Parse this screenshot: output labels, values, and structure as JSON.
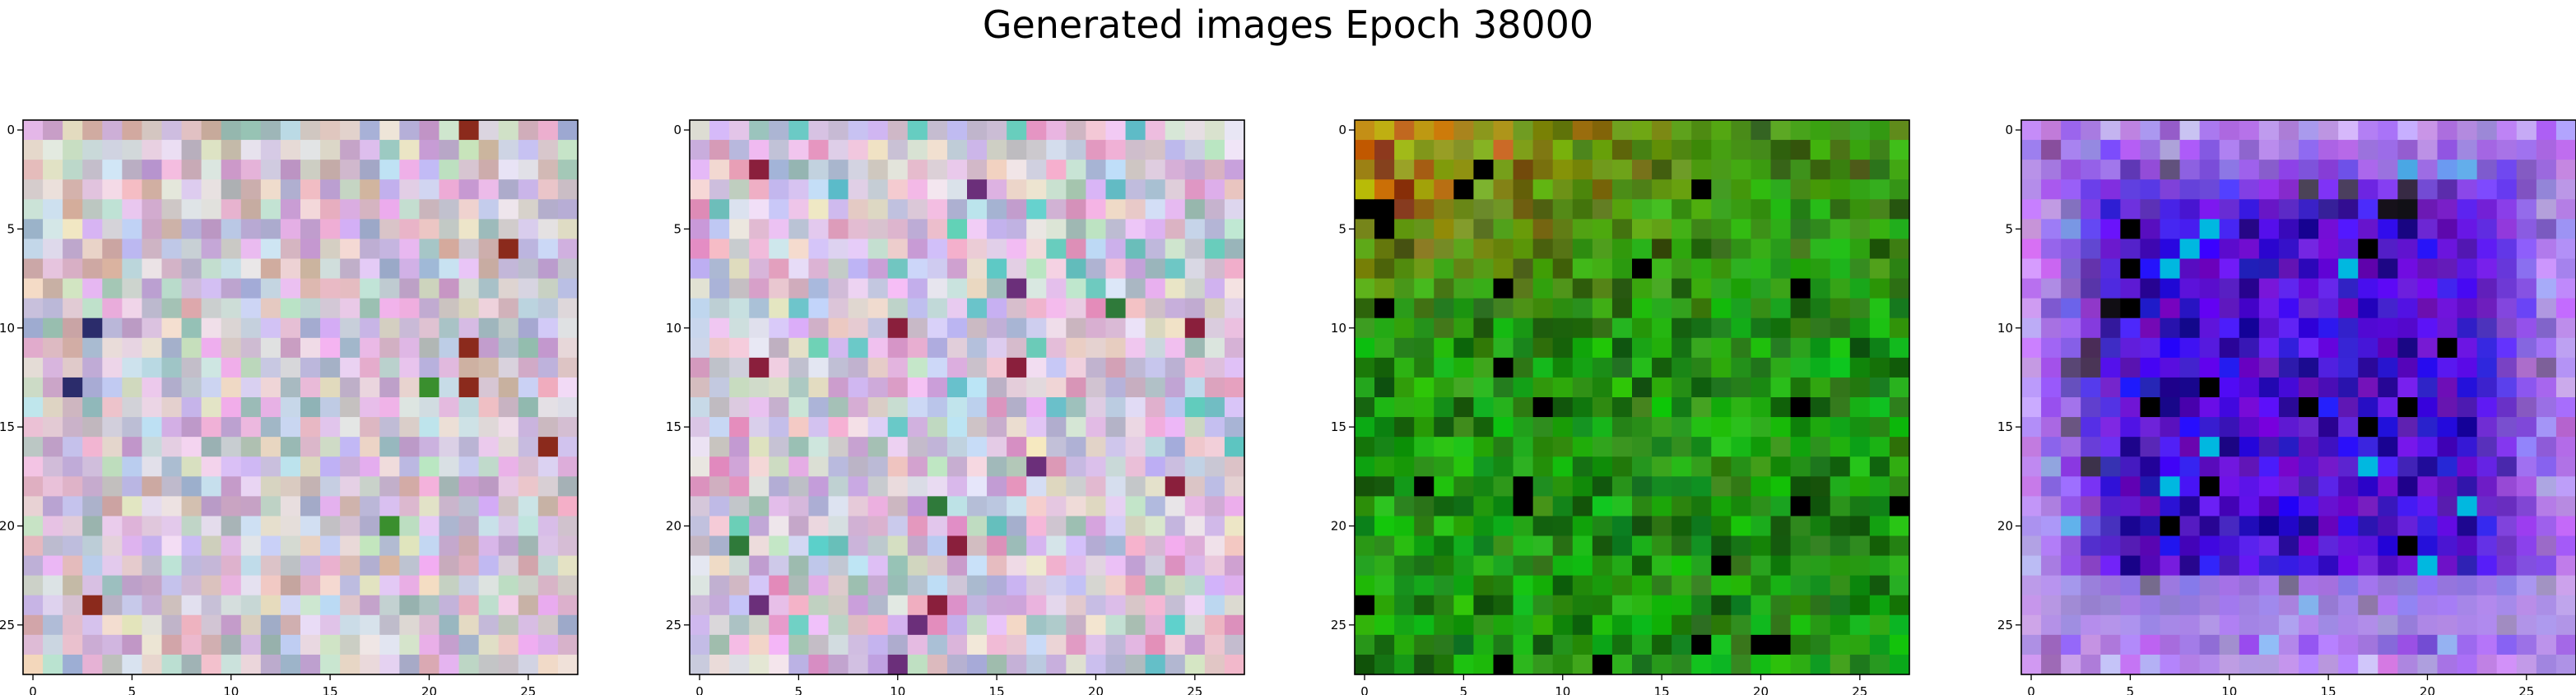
{
  "figure": {
    "title": "Generated images Epoch 38000"
  },
  "chart_data": [
    {
      "type": "heatmap",
      "name": "generated-image-1",
      "palette": "light-pastel-noise",
      "grid": false,
      "xlim": [
        -0.5,
        27.5
      ],
      "ylim": [
        27.5,
        -0.5
      ],
      "xticks": [
        "0",
        "5",
        "10",
        "15",
        "20",
        "25"
      ],
      "yticks": [
        "0",
        "5",
        "10",
        "15",
        "20",
        "25"
      ],
      "colors": {
        "base": "#d7c9d9",
        "accents": [
          "#7fb3a4",
          "#b68dc5",
          "#8fa5c9",
          "#c9a08e",
          "#f0f0e8",
          "#2b2c6b",
          "#8b2a1c",
          "#3a8f2e"
        ]
      }
    },
    {
      "type": "heatmap",
      "name": "generated-image-2",
      "palette": "light-pastel-noise",
      "grid": false,
      "xlim": [
        -0.5,
        27.5
      ],
      "ylim": [
        27.5,
        -0.5
      ],
      "xticks": [
        "0",
        "5",
        "10",
        "15",
        "20",
        "25"
      ],
      "yticks": [
        "0",
        "5",
        "10",
        "15",
        "20",
        "25"
      ],
      "colors": {
        "base": "#d8cbdc",
        "accents": [
          "#86b7a6",
          "#c08fcf",
          "#9ca9d0",
          "#e07bb0",
          "#1ac4b0",
          "#6b2f7a",
          "#8a1f3c",
          "#2f7a3a"
        ]
      }
    },
    {
      "type": "heatmap",
      "name": "generated-image-3",
      "palette": "green-foliage-with-orange-top",
      "grid": false,
      "xlim": [
        -0.5,
        27.5
      ],
      "ylim": [
        27.5,
        -0.5
      ],
      "xticks": [
        "0",
        "5",
        "10",
        "15",
        "20",
        "25"
      ],
      "yticks": [
        "0",
        "5",
        "10",
        "15",
        "20",
        "25"
      ],
      "colors": {
        "base": "#1f8f12",
        "accents": [
          "#b7a31e",
          "#c46f12",
          "#a12a0c",
          "#0c3f08",
          "#19b019",
          "#5a8f2a",
          "#000000"
        ]
      }
    },
    {
      "type": "heatmap",
      "name": "generated-image-4",
      "palette": "blue-purple-with-light-border",
      "grid": false,
      "xlim": [
        -0.5,
        27.5
      ],
      "ylim": [
        27.5,
        -0.5
      ],
      "xticks": [
        "0",
        "5",
        "10",
        "15",
        "20",
        "25"
      ],
      "yticks": [
        "0",
        "5",
        "10",
        "15",
        "20",
        "25"
      ],
      "colors": {
        "base": "#2a1ad6",
        "accents": [
          "#0a0070",
          "#7a10e0",
          "#c04ef0",
          "#c8b8f0",
          "#00b8e0",
          "#000000",
          "#6a0040"
        ]
      }
    }
  ]
}
